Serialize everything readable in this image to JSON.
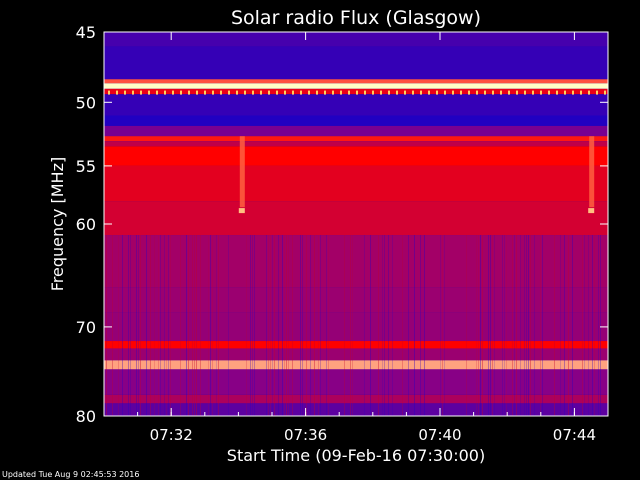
{
  "chart_data": {
    "type": "heatmap",
    "title": "Solar radio Flux (Glasgow)",
    "xlabel": "Start Time (09-Feb-16 07:30:00)",
    "ylabel": "Frequency [MHz]",
    "x_ticks": [
      "07:32",
      "07:36",
      "07:40",
      "07:44"
    ],
    "x_tick_minutes": [
      2,
      6,
      10,
      14
    ],
    "x_range_minutes": [
      0,
      15
    ],
    "y_ticks": [
      45,
      50,
      55,
      60,
      70,
      80
    ],
    "y_range_mhz": [
      45,
      80
    ],
    "y_scale": "log",
    "colormap": "blue-red-white",
    "bands": [
      {
        "from": 45.0,
        "to": 46.0,
        "intensity": 0.15
      },
      {
        "from": 46.0,
        "to": 48.3,
        "intensity": 0.1
      },
      {
        "from": 48.3,
        "to": 48.6,
        "intensity": 0.85
      },
      {
        "from": 48.6,
        "to": 49.0,
        "intensity": 1.0
      },
      {
        "from": 49.0,
        "to": 49.4,
        "intensity": 0.7
      },
      {
        "from": 49.4,
        "to": 51.0,
        "intensity": 0.1
      },
      {
        "from": 51.0,
        "to": 51.8,
        "intensity": 0.04
      },
      {
        "from": 51.8,
        "to": 52.6,
        "intensity": 0.3
      },
      {
        "from": 52.6,
        "to": 53.0,
        "intensity": 0.8
      },
      {
        "from": 53.0,
        "to": 53.4,
        "intensity": 0.55
      },
      {
        "from": 53.4,
        "to": 55.0,
        "intensity": 0.78
      },
      {
        "from": 55.0,
        "to": 58.0,
        "intensity": 0.68
      },
      {
        "from": 58.0,
        "to": 61.0,
        "intensity": 0.62
      },
      {
        "from": 61.0,
        "to": 66.0,
        "intensity": 0.45
      },
      {
        "from": 66.0,
        "to": 68.5,
        "intensity": 0.42
      },
      {
        "from": 68.5,
        "to": 71.5,
        "intensity": 0.4
      },
      {
        "from": 71.5,
        "to": 72.3,
        "intensity": 0.78
      },
      {
        "from": 72.3,
        "to": 73.6,
        "intensity": 0.42
      },
      {
        "from": 73.6,
        "to": 74.6,
        "intensity": 0.92
      },
      {
        "from": 74.6,
        "to": 77.5,
        "intensity": 0.35
      },
      {
        "from": 77.5,
        "to": 78.5,
        "intensity": 0.48
      },
      {
        "from": 78.5,
        "to": 80.0,
        "intensity": 0.22
      }
    ],
    "events": [
      {
        "minute": 4.1,
        "from": 52.6,
        "to": 58.5,
        "label": ""
      },
      {
        "minute": 14.5,
        "from": 52.6,
        "to": 58.5,
        "label": ""
      }
    ]
  },
  "footer": "Updated Tue Aug  9 02:45:53 2016"
}
